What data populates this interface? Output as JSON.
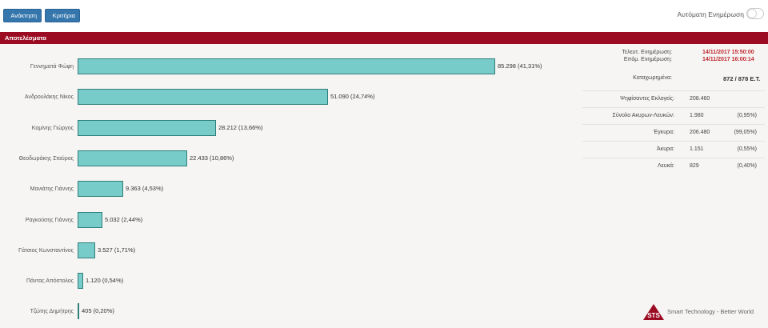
{
  "toolbar": {
    "search_label": "Ανάκτηση",
    "filter_label": "Κριτήρια",
    "auto_update_label": "Αυτόματη Ενημέρωση"
  },
  "panel": {
    "title": "Αποτελέσματα"
  },
  "results": [
    {
      "name": "Γεννηματά Φώφη",
      "votes": 85298,
      "label": "85.298 (41,31%)"
    },
    {
      "name": "Ανδρουλάκης Νίκος",
      "votes": 51090,
      "label": "51.090 (24,74%)"
    },
    {
      "name": "Καμίνης Γιώργος",
      "votes": 28212,
      "label": "28.212 (13,66%)"
    },
    {
      "name": "Θεοδωράκης Σταύρος",
      "votes": 22433,
      "label": "22.433 (10,86%)"
    },
    {
      "name": "Μανιάτης Γιάννης",
      "votes": 9363,
      "label": "9.363 (4,53%)"
    },
    {
      "name": "Ραγκούσης Γιάννης",
      "votes": 5032,
      "label": "5.032 (2,44%)"
    },
    {
      "name": "Γάτσιος Κωνσταντίνος",
      "votes": 3527,
      "label": "3.527 (1,71%)"
    },
    {
      "name": "Πάντας Απόστολος",
      "votes": 1120,
      "label": "1.120 (0,54%)"
    },
    {
      "name": "Τζώτης Δημήτρης",
      "votes": 405,
      "label": "405 (0,20%)"
    }
  ],
  "info": {
    "last_update_label": "Τελευτ. Ενημέρωση:",
    "last_update_value": "14/11/2017 15:50:00",
    "next_update_label": "Επόμ. Ενημέρωση:",
    "next_update_value": "14/11/2017 16:00:14",
    "recorded_label": "Καταχωρημένα:",
    "recorded_value": "872 / 878 Ε.Τ."
  },
  "stats": [
    {
      "label": "Ψηφίσαντες Εκλογείς:",
      "value": "208.460",
      "pct": ""
    },
    {
      "label": "Σύνολο Ακυρων-Λευκών:",
      "value": "1.980",
      "pct": "(0,95%)"
    },
    {
      "label": "Έγκυρα:",
      "value": "206.480",
      "pct": "(99,05%)"
    },
    {
      "label": "Άκυρα:",
      "value": "1.151",
      "pct": "(0,55%)"
    },
    {
      "label": "Λευκά:",
      "value": "829",
      "pct": "(0,40%)"
    }
  ],
  "footer": {
    "logo_text": "STS",
    "tagline": "Smart Technology - Better World"
  },
  "colors": {
    "accent": "#9b0c22",
    "bar": "#77cbc8",
    "bar_border": "#2f7f7a",
    "button": "#3576ac",
    "date_red": "#c0272d"
  }
}
